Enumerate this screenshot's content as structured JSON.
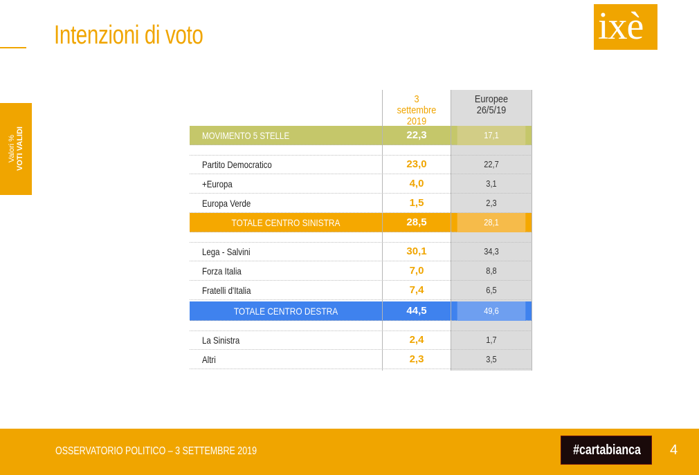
{
  "header": {
    "title": "Intenzioni di voto",
    "logo": "ixè"
  },
  "side_tab": {
    "line1": "Valori %",
    "line2": "VOTI VALIDI"
  },
  "table": {
    "col1_header": "3 settembre 2019",
    "col2_header_line1": "Europee",
    "col2_header_line2": "26/5/19",
    "rows": [
      {
        "name": "MOVIMENTO 5 STELLE",
        "v1": "22,3",
        "v2": "17,1"
      },
      {
        "name": "Partito Democratico",
        "v1": "23,0",
        "v2": "22,7"
      },
      {
        "name": "+Europa",
        "v1": "4,0",
        "v2": "3,1"
      },
      {
        "name": "Europa Verde",
        "v1": "1,5",
        "v2": "2,3"
      },
      {
        "name": "TOTALE CENTRO SINISTRA",
        "v1": "28,5",
        "v2": "28,1"
      },
      {
        "name": "Lega - Salvini",
        "v1": "30,1",
        "v2": "34,3"
      },
      {
        "name": "Forza Italia",
        "v1": "7,0",
        "v2": "8,8"
      },
      {
        "name": "Fratelli d'Italia",
        "v1": "7,4",
        "v2": "6,5"
      },
      {
        "name": "TOTALE CENTRO DESTRA",
        "v1": "44,5",
        "v2": "49,6"
      },
      {
        "name": "La Sinistra",
        "v1": "2,4",
        "v2": "1,7"
      },
      {
        "name": "Altri",
        "v1": "2,3",
        "v2": "3,5"
      }
    ]
  },
  "footer": {
    "text": "OSSERVATORIO POLITICO – 3 SETTEMBRE 2019",
    "brand": "#cartabianca",
    "page": "4"
  },
  "colors": {
    "accent": "#f0a500",
    "m5s": "#c5c76a",
    "centro_sinistra": "#f5a800",
    "centro_destra": "#3f82ee"
  }
}
